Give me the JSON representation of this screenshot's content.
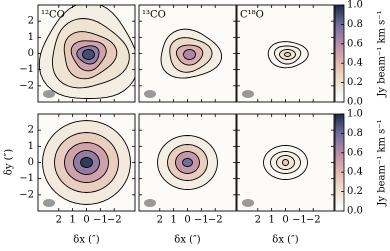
{
  "chart_data": {
    "type": "contour-grid",
    "columns": [
      "¹²CO",
      "¹³CO",
      "C¹⁸O"
    ],
    "x_label": "δx (″)",
    "y_label": "δy (″)",
    "colorbar_label": "Jy beam⁻¹ km s⁻¹",
    "xlim": [
      3.5,
      -3.5
    ],
    "xticks": [
      2,
      1,
      0,
      {
        "value": -1,
        "label": "−1"
      },
      {
        "value": -2,
        "label": "−2"
      }
    ],
    "ylim": [
      -3,
      3
    ],
    "yticks": [
      {
        "value": -2,
        "label": "−2"
      },
      {
        "value": -1,
        "label": "−1"
      },
      0,
      1,
      2
    ],
    "clim": [
      0,
      1
    ],
    "cticks": [
      {
        "value": 0,
        "label": "0.0"
      },
      {
        "value": 0.2,
        "label": "0.2"
      },
      {
        "value": 0.4,
        "label": "0.4"
      },
      {
        "value": 0.6,
        "label": "0.6"
      },
      {
        "value": 0.8,
        "label": "0.8"
      },
      {
        "value": 1,
        "label": "1.0"
      }
    ],
    "colormap": [
      "#ffffff",
      "#efe3d2",
      "#e2b9ad",
      "#b98aa6",
      "#6d6e9c",
      "#1d2b45"
    ]
  }
}
